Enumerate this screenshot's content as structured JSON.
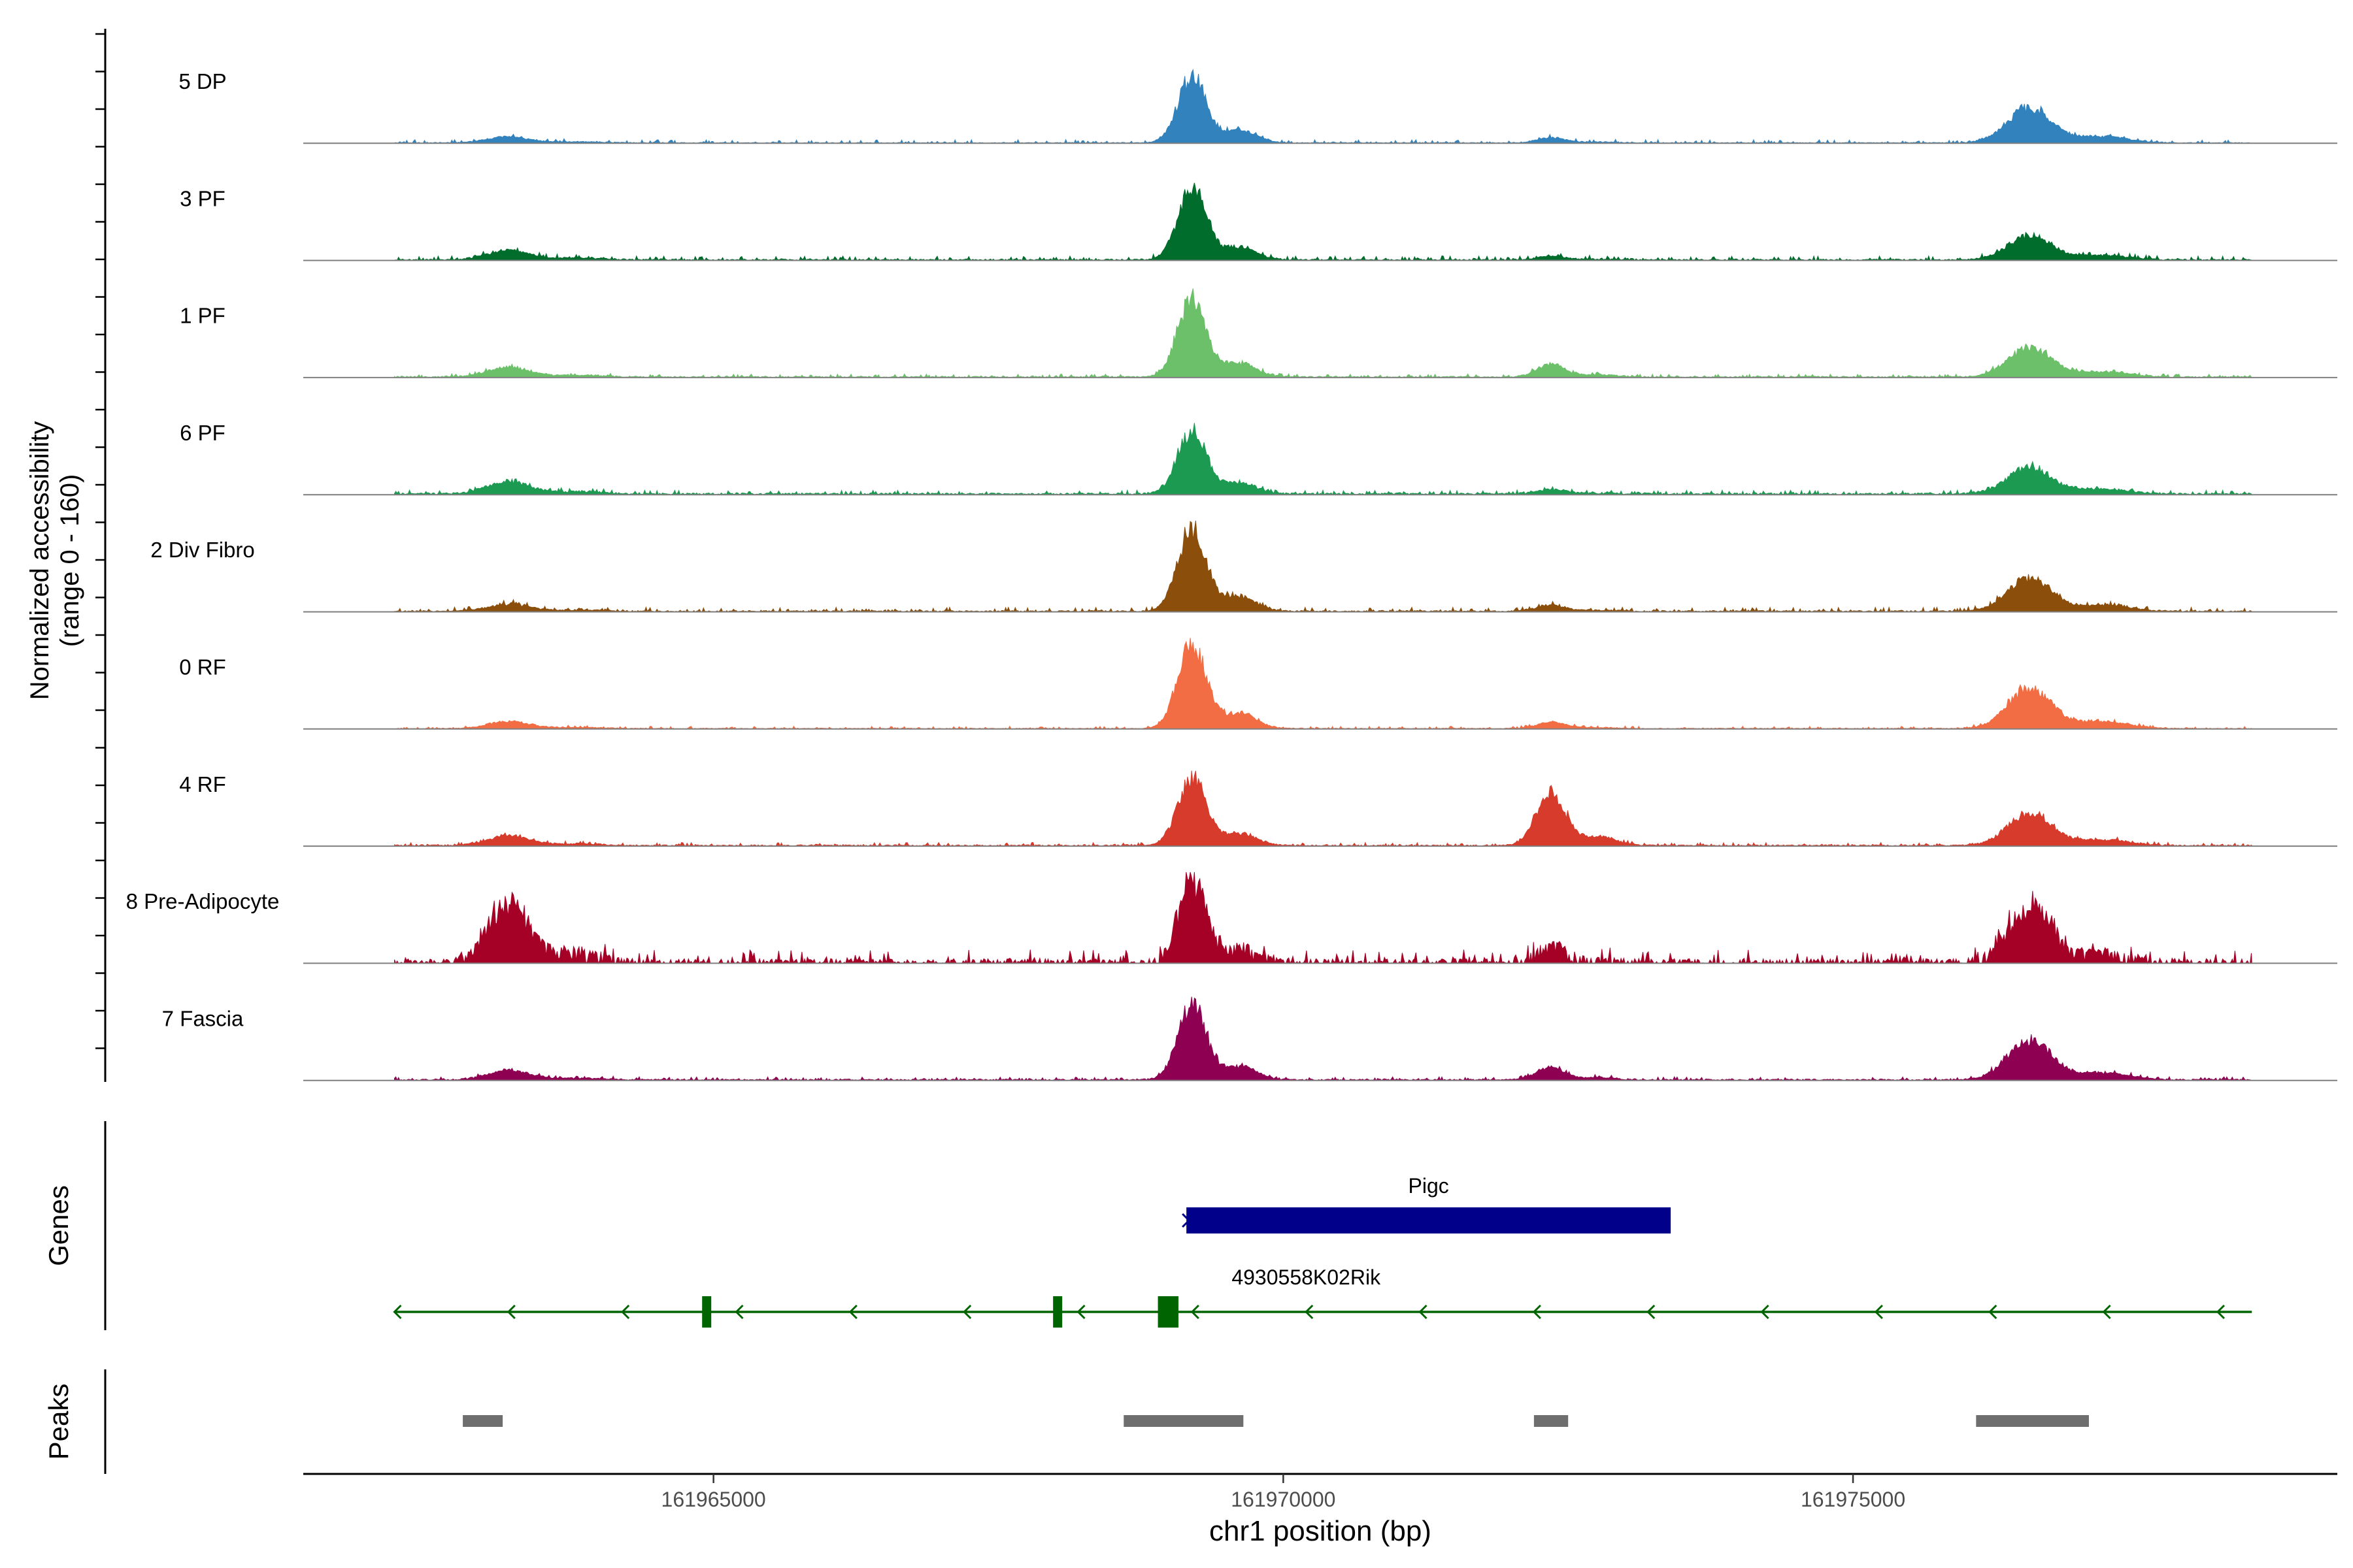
{
  "chart_data": {
    "type": "area",
    "title": "",
    "xlabel": "chr1 position (bp)",
    "ylabel_line1": "Normalized accessibility",
    "ylabel_line2": "(range 0 - 160)",
    "ylim": [
      0,
      160
    ],
    "xlim": [
      161961400,
      161979250
    ],
    "x_ticks": [
      161965000,
      161970000,
      161975000
    ],
    "x_tick_labels": [
      "161965000",
      "161970000",
      "161975000"
    ],
    "region": [
      161962200,
      161978500
    ],
    "baseline": 4,
    "peak_centers": [
      161963200,
      161969200,
      161972350,
      161976550
    ],
    "series": [
      {
        "name": "5 DP",
        "color": "#3182bd",
        "peak_heights": [
          14,
          150,
          12,
          80
        ],
        "noise": [
          2,
          8
        ]
      },
      {
        "name": "3 PF",
        "color": "#006d2c",
        "peak_heights": [
          22,
          160,
          8,
          55
        ],
        "noise": [
          3,
          10
        ]
      },
      {
        "name": "1 PF",
        "color": "#6cc06a",
        "peak_heights": [
          22,
          175,
          28,
          65
        ],
        "noise": [
          3,
          8
        ]
      },
      {
        "name": "6 PF",
        "color": "#1d9a52",
        "peak_heights": [
          28,
          140,
          10,
          60
        ],
        "noise": [
          4,
          10
        ]
      },
      {
        "name": "2 Div Fibro",
        "color": "#8b4e0b",
        "peak_heights": [
          16,
          185,
          14,
          75
        ],
        "noise": [
          3,
          10
        ]
      },
      {
        "name": "0 RF",
        "color": "#f26d43",
        "peak_heights": [
          16,
          190,
          15,
          90
        ],
        "noise": [
          2,
          6
        ]
      },
      {
        "name": "4 RF",
        "color": "#d63b2b",
        "peak_heights": [
          22,
          150,
          120,
          75
        ],
        "noise": [
          3,
          8
        ]
      },
      {
        "name": "8 Pre-Adipocyte",
        "color": "#a50026",
        "peak_heights": [
          140,
          190,
          40,
          130
        ],
        "noise": [
          10,
          30
        ]
      },
      {
        "name": "7 Fascia",
        "color": "#8e0152",
        "peak_heights": [
          22,
          170,
          28,
          90
        ],
        "noise": [
          3,
          8
        ]
      }
    ],
    "genes": [
      {
        "name": "Pigc",
        "start": 161969150,
        "end": 161973400,
        "strand": "+",
        "color": "#00008b"
      },
      {
        "name": "4930558K02Rik",
        "start": 161962200,
        "end": 161978500,
        "strand": "-",
        "color": "#006400",
        "exons": [
          [
            161964900,
            161964980
          ],
          [
            161967980,
            161968060
          ],
          [
            161968900,
            161969080
          ]
        ]
      }
    ],
    "peaks": [
      [
        161962800,
        161963150
      ],
      [
        161968600,
        161969650
      ],
      [
        161972200,
        161972500
      ],
      [
        161976080,
        161977070
      ]
    ],
    "panel_labels": {
      "genes": "Genes",
      "peaks": "Peaks"
    },
    "peak_color": "#6e6e6e"
  }
}
